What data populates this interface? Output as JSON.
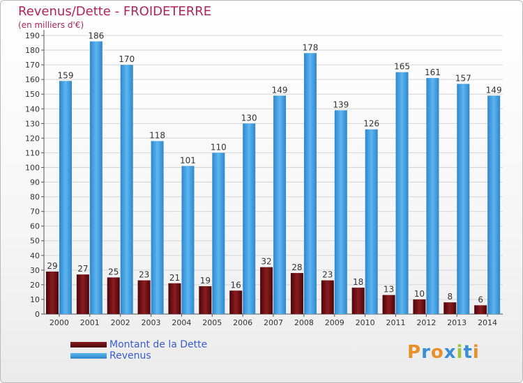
{
  "chart_data": {
    "type": "bar",
    "title": "Revenus/Dette - FROIDETERRE",
    "subtitle": "(en milliers d'€)",
    "categories": [
      "2000",
      "2001",
      "2002",
      "2003",
      "2004",
      "2005",
      "2006",
      "2007",
      "2008",
      "2009",
      "2010",
      "2011",
      "2012",
      "2013",
      "2014"
    ],
    "series": [
      {
        "name": "Montant de la Dette",
        "color": "#6b0f12",
        "values": [
          29,
          27,
          25,
          23,
          21,
          19,
          16,
          32,
          28,
          23,
          18,
          13,
          10,
          8,
          6
        ]
      },
      {
        "name": "Revenus",
        "color": "#3f9ee0",
        "values": [
          159,
          186,
          170,
          118,
          101,
          110,
          130,
          149,
          178,
          139,
          126,
          165,
          161,
          157,
          149
        ]
      }
    ],
    "ylim": [
      0,
      190
    ],
    "yticks": [
      0,
      10,
      20,
      30,
      40,
      50,
      60,
      70,
      80,
      90,
      100,
      110,
      120,
      130,
      140,
      150,
      160,
      170,
      180,
      190
    ],
    "grid": true,
    "legend": "bottom-left"
  },
  "logo": {
    "letters": [
      "P",
      "r",
      "o",
      "x",
      "i",
      "t",
      "i"
    ],
    "colors": [
      "#e8902a",
      "#3a8ed6",
      "#e8902a",
      "#3a8ed6",
      "#9bc43a",
      "#3a8ed6",
      "#e8902a"
    ]
  }
}
